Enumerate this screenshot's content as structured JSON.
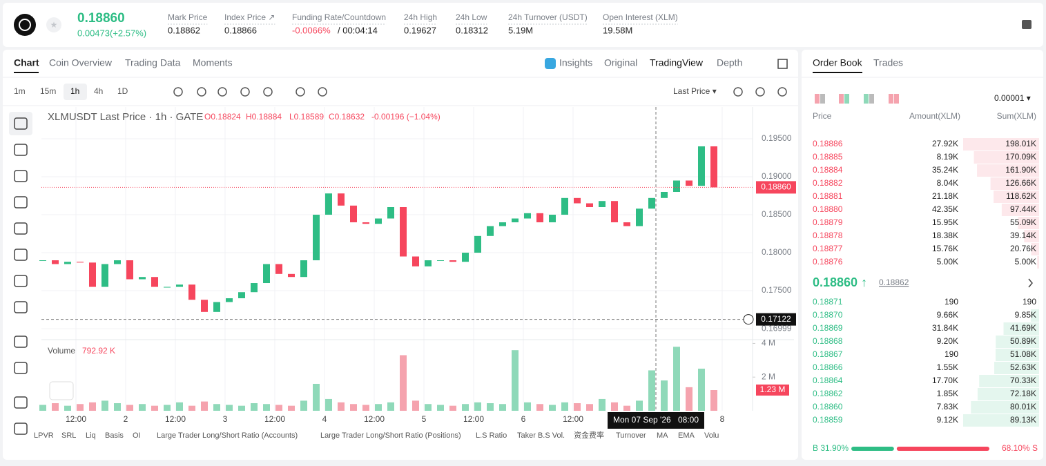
{
  "header": {
    "price": "0.18860",
    "change": "0.00473(+2.57%)",
    "stats": [
      {
        "label": "Mark Price",
        "value": "0.18862"
      },
      {
        "label": "Index Price ↗",
        "value": "0.18866"
      },
      {
        "label": "Funding Rate/Countdown",
        "value": "-0.0066%",
        "countdown": "/ 00:04:14"
      },
      {
        "label": "24h High",
        "value": "0.19627"
      },
      {
        "label": "24h Low",
        "value": "0.18312"
      },
      {
        "label": "24h Turnover (USDT)",
        "value": "5.19M"
      },
      {
        "label": "Open Interest (XLM)",
        "value": "19.58M"
      }
    ]
  },
  "tabs": [
    "Chart",
    "Coin Overview",
    "Trading Data",
    "Moments"
  ],
  "views": [
    "Insights",
    "Original",
    "TradingView",
    "Depth"
  ],
  "intervals": [
    "1m",
    "15m",
    "1h",
    "4h",
    "1D"
  ],
  "price_source": "Last Price ▾",
  "indicators": [
    "LPVR",
    "SRL",
    "Liq",
    "Basis",
    "OI",
    "Large Trader Long/Short Ratio (Accounts)",
    "Large Trader Long/Short Ratio (Positions)",
    "L.S Ratio",
    "Taker B.S Vol.",
    "资金费率",
    "Turnover",
    "MA",
    "EMA",
    "Volu"
  ],
  "chart_data": {
    "type": "candlestick",
    "title": "XLMUSDT Last Price · 1h · GATE",
    "ohlc": [
      "O0.18824",
      "H0.18884",
      "L0.18589",
      "C0.18632",
      "-0.00196 (−1.04%)"
    ],
    "x": [
      0,
      3,
      6,
      9,
      12,
      15,
      18,
      21,
      24,
      27,
      30,
      33,
      36,
      39,
      42,
      45,
      48,
      51,
      54,
      57,
      60,
      63,
      66,
      69,
      72,
      75,
      78,
      81,
      84,
      87,
      90,
      93,
      96,
      99,
      102,
      105,
      108,
      111,
      114,
      117,
      120,
      123,
      126,
      129,
      132,
      135,
      138,
      141,
      144,
      147,
      150,
      153,
      156,
      159,
      162
    ],
    "close": [
      0.179,
      0.1785,
      0.1788,
      0.1787,
      0.1755,
      0.1785,
      0.179,
      0.1765,
      0.1768,
      0.1755,
      0.1755,
      0.1758,
      0.1738,
      0.1722,
      0.1735,
      0.174,
      0.1748,
      0.176,
      0.1785,
      0.1772,
      0.1768,
      0.179,
      0.185,
      0.1878,
      0.1862,
      0.184,
      0.1838,
      0.1845,
      0.186,
      0.1795,
      0.1782,
      0.179,
      0.179,
      0.1788,
      0.18,
      0.1822,
      0.1835,
      0.184,
      0.1845,
      0.1852,
      0.184,
      0.185,
      0.1872,
      0.1865,
      0.186,
      0.1868,
      0.184,
      0.1835,
      0.1858,
      0.1872,
      0.188,
      0.1895,
      0.1888,
      0.194,
      0.1886
    ],
    "volume": [
      350000,
      450000,
      300000,
      400000,
      500000,
      600000,
      450000,
      350000,
      400000,
      300000,
      350000,
      500000,
      300000,
      550000,
      400000,
      350000,
      300000,
      450000,
      400000,
      350000,
      300000,
      600000,
      1600000,
      700000,
      500000,
      400000,
      350000,
      400000,
      500000,
      3300000,
      600000,
      400000,
      350000,
      300000,
      400000,
      500000,
      450000,
      400000,
      3600000,
      500000,
      400000,
      350000,
      500000,
      450000,
      400000,
      700000,
      500000,
      300000,
      600000,
      2400000,
      1800000,
      3800000,
      1400000,
      2500000,
      1230000
    ],
    "xlim": [
      0,
      172
    ],
    "xticks": [
      {
        "value": 8,
        "label": "12:00"
      },
      {
        "value": 20,
        "label": "2"
      },
      {
        "value": 32,
        "label": "12:00"
      },
      {
        "value": 44,
        "label": "3"
      },
      {
        "value": 56,
        "label": "12:00"
      },
      {
        "value": 68,
        "label": "4"
      },
      {
        "value": 80,
        "label": "12:00"
      },
      {
        "value": 92,
        "label": "5"
      },
      {
        "value": 104,
        "label": "12:00"
      },
      {
        "value": 116,
        "label": "6"
      },
      {
        "value": 128,
        "label": "12:00"
      },
      {
        "value": 164,
        "label": "8"
      }
    ],
    "ylim": [
      0.16873,
      0.19918
    ],
    "yticks": [
      {
        "value": 0.195,
        "label": "0.19500"
      },
      {
        "value": 0.19,
        "label": "0.19000"
      },
      {
        "value": 0.185,
        "label": "0.18500"
      },
      {
        "value": 0.18,
        "label": "0.18000"
      },
      {
        "value": 0.175,
        "label": "0.17500"
      },
      {
        "value": 0.16999,
        "label": "0.16999"
      }
    ],
    "last_price": {
      "value": 0.1886,
      "label": "0.18860"
    },
    "crosshair": {
      "x": 148,
      "date_label": "Mon 07 Sep '26",
      "time_label": "08:00",
      "y": {
        "value": 0.17122,
        "label": "0.17122"
      }
    },
    "volume_title": "Volume",
    "volume_value": "792.92 K",
    "volume_ylim": [
      0,
      4100000
    ],
    "volume_yticks": [
      {
        "value": 2000000,
        "label": "2 M"
      },
      {
        "value": 4000000,
        "label": "4 M"
      }
    ],
    "last_volume": {
      "value": 1230000,
      "label": "1.23 M"
    },
    "colors": {
      "up": "#2ebd85",
      "down": "#f6465d",
      "up_volume": "#8fd9b9",
      "down_volume": "#f5a3ae"
    }
  },
  "order_book": {
    "tabs": [
      "Order Book",
      "Trades"
    ],
    "precision": "0.00001 ▾",
    "columns": [
      "Price",
      "Amount(XLM)",
      "Sum(XLM)"
    ],
    "asks": [
      [
        "0.18886",
        "27.92K",
        "198.01K"
      ],
      [
        "0.18885",
        "8.19K",
        "170.09K"
      ],
      [
        "0.18884",
        "35.24K",
        "161.90K"
      ],
      [
        "0.18882",
        "8.04K",
        "126.66K"
      ],
      [
        "0.18881",
        "21.18K",
        "118.62K"
      ],
      [
        "0.18880",
        "42.35K",
        "97.44K"
      ],
      [
        "0.18879",
        "15.95K",
        "55.09K"
      ],
      [
        "0.18878",
        "18.38K",
        "39.14K"
      ],
      [
        "0.18877",
        "15.76K",
        "20.76K"
      ],
      [
        "0.18876",
        "5.00K",
        "5.00K"
      ]
    ],
    "mid_price": "0.18860 ↑",
    "mark_price": "0.18862",
    "bids": [
      [
        "0.18871",
        "190",
        "190"
      ],
      [
        "0.18870",
        "9.66K",
        "9.85K"
      ],
      [
        "0.18869",
        "31.84K",
        "41.69K"
      ],
      [
        "0.18868",
        "9.20K",
        "50.89K"
      ],
      [
        "0.18867",
        "190",
        "51.08K"
      ],
      [
        "0.18866",
        "1.55K",
        "52.63K"
      ],
      [
        "0.18864",
        "17.70K",
        "70.33K"
      ],
      [
        "0.18862",
        "1.85K",
        "72.18K"
      ],
      [
        "0.18860",
        "7.83K",
        "80.01K"
      ],
      [
        "0.18859",
        "9.12K",
        "89.13K"
      ]
    ],
    "buy_ratio": "B 31.90%",
    "sell_ratio": "68.10% S"
  }
}
